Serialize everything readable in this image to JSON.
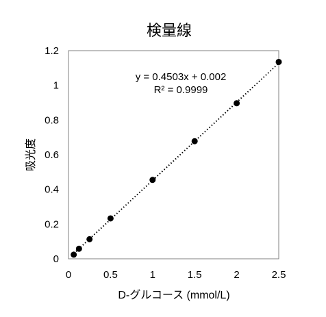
{
  "chart_data": {
    "type": "scatter",
    "title": "検量線",
    "xlabel": "D-グルコース (mmol/L)",
    "ylabel": "吸光度",
    "xlim": [
      0,
      2.5
    ],
    "ylim": [
      0,
      1.2
    ],
    "x_ticks": [
      0,
      0.5,
      1,
      1.5,
      2,
      2.5
    ],
    "x_tick_labels": [
      "0",
      "0.5",
      "1",
      "1.5",
      "2",
      "2.5"
    ],
    "y_ticks": [
      0,
      0.2,
      0.4,
      0.6,
      0.8,
      1,
      1.2
    ],
    "y_tick_labels": [
      "0",
      "0.2",
      "0.4",
      "0.6",
      "0.8",
      "1",
      "1.2"
    ],
    "grid": false,
    "legend": "none",
    "series": [
      {
        "x": [
          0.0625,
          0.125,
          0.25,
          0.5,
          1.0,
          1.5,
          2.0,
          2.5
        ],
        "y": [
          0.024,
          0.058,
          0.113,
          0.233,
          0.455,
          0.678,
          0.897,
          1.135
        ],
        "color": "#000000"
      }
    ],
    "trendline": {
      "style": "dotted",
      "slope": 0.4503,
      "intercept": 0.002,
      "equation_label": "y = 0.4503x + 0.002",
      "r2_label": "R² = 0.9999"
    }
  }
}
